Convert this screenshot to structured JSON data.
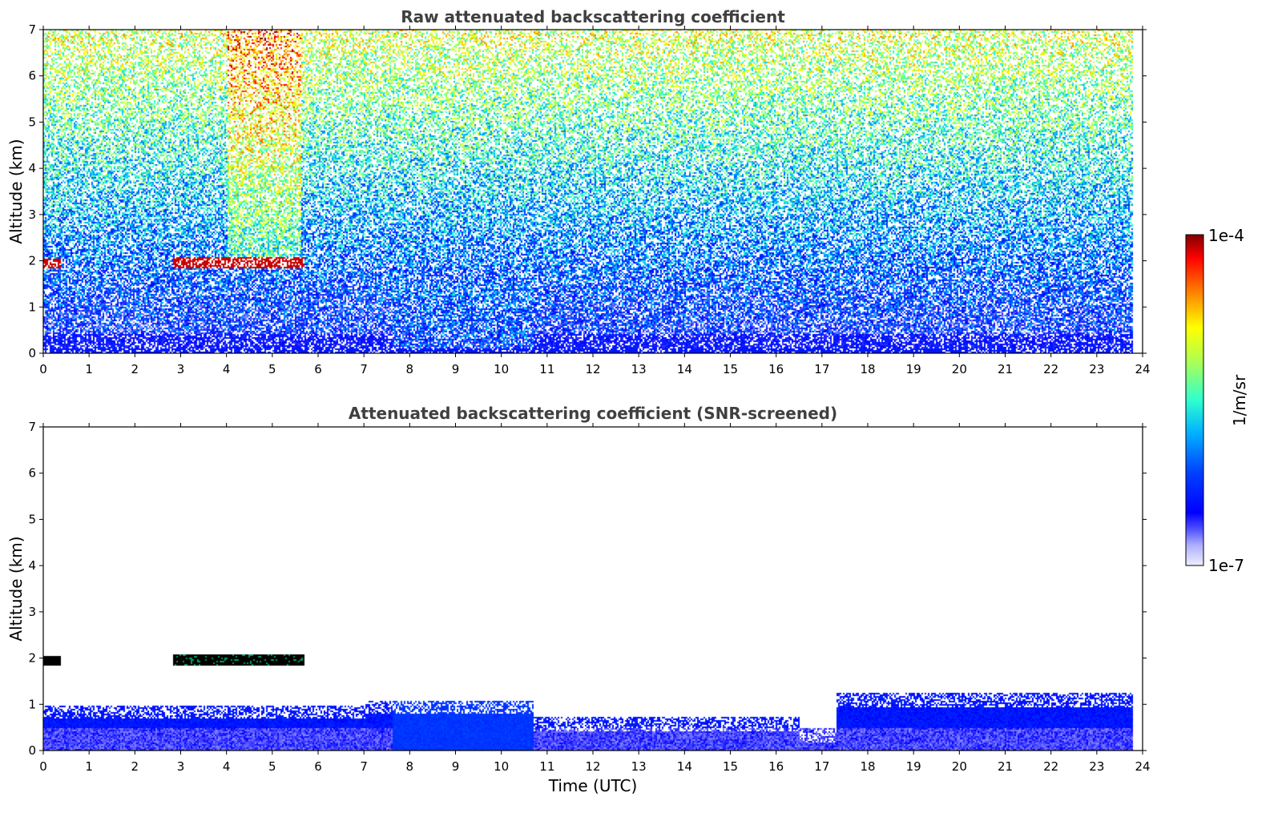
{
  "chart_data": [
    {
      "type": "heatmap",
      "title": "Raw attenuated backscattering coefficient",
      "xlabel": "",
      "ylabel": "Altitude (km)",
      "xlim": [
        0,
        24
      ],
      "ylim": [
        0,
        7
      ],
      "x_ticks": [
        "0",
        "1",
        "2",
        "3",
        "4",
        "5",
        "6",
        "7",
        "8",
        "9",
        "10",
        "11",
        "12",
        "13",
        "14",
        "15",
        "16",
        "17",
        "18",
        "19",
        "20",
        "21",
        "22",
        "23",
        "24"
      ],
      "y_ticks": [
        "0",
        "1",
        "2",
        "3",
        "4",
        "5",
        "6",
        "7"
      ],
      "data_extent_time": [
        0,
        23.8
      ],
      "features": [
        {
          "name": "boundary-layer",
          "time": [
            0,
            23.8
          ],
          "altitude": [
            0,
            1.0
          ],
          "level": "low"
        },
        {
          "name": "cloud-layer",
          "time": [
            2.8,
            5.7
          ],
          "altitude": [
            1.85,
            2.1
          ],
          "level": "high"
        },
        {
          "name": "aerosol-plume",
          "time": [
            4.0,
            5.6
          ],
          "altitude": [
            2.0,
            7.0
          ],
          "level": "high"
        }
      ]
    },
    {
      "type": "heatmap",
      "title": "Attenuated backscattering coefficient (SNR-screened)",
      "xlabel": "Time (UTC)",
      "ylabel": "Altitude (km)",
      "xlim": [
        0,
        24
      ],
      "ylim": [
        0,
        7
      ],
      "x_ticks": [
        "0",
        "1",
        "2",
        "3",
        "4",
        "5",
        "6",
        "7",
        "8",
        "9",
        "10",
        "11",
        "12",
        "13",
        "14",
        "15",
        "16",
        "17",
        "18",
        "19",
        "20",
        "21",
        "22",
        "23",
        "24"
      ],
      "y_ticks": [
        "0",
        "1",
        "2",
        "3",
        "4",
        "5",
        "6",
        "7"
      ],
      "data_extent_time": [
        0,
        23.8
      ],
      "features": [
        {
          "name": "boundary-layer",
          "time": [
            0,
            23.8
          ],
          "altitude": [
            0,
            1.3
          ],
          "level": "low"
        },
        {
          "name": "cloud-layer",
          "time": [
            2.8,
            5.7
          ],
          "altitude": [
            1.85,
            2.1
          ],
          "level": "saturated"
        }
      ]
    }
  ],
  "colorbar": {
    "min_label": "1e-7",
    "max_label": "1e-4",
    "unit_label": "1/m/sr",
    "colormap": "jet"
  }
}
